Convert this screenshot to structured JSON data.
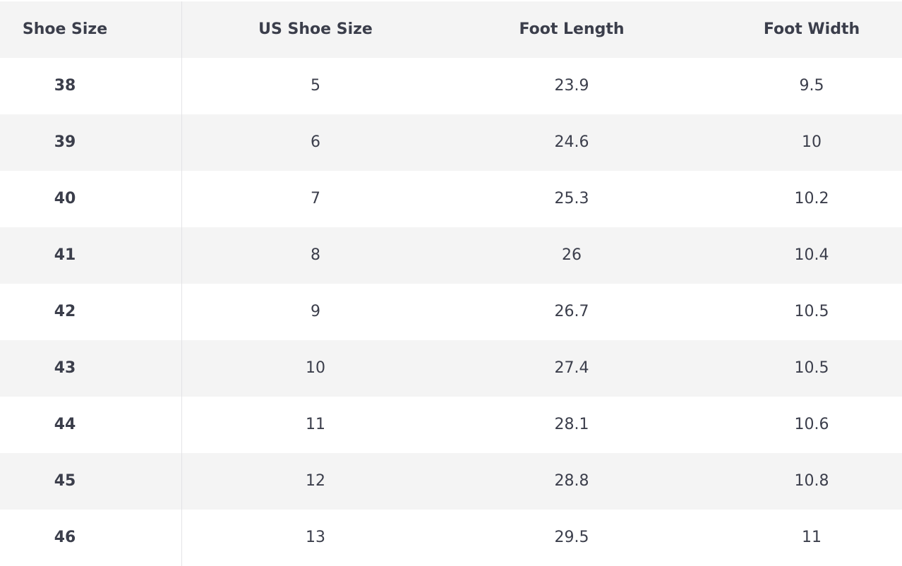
{
  "table": {
    "header": [
      "Shoe Size",
      "US Shoe Size",
      "Foot Length",
      "Foot Width"
    ],
    "rows": [
      [
        38,
        5,
        23.9,
        9.5
      ],
      [
        39,
        6,
        24.6,
        10
      ],
      [
        40,
        7,
        25.3,
        10.2
      ],
      [
        41,
        8,
        26,
        10.4
      ],
      [
        42,
        9,
        26.7,
        10.5
      ],
      [
        43,
        10,
        27.4,
        10.5
      ],
      [
        44,
        11,
        28.1,
        10.6
      ],
      [
        45,
        12,
        28.8,
        10.8
      ],
      [
        46,
        13,
        29.5,
        11
      ]
    ]
  }
}
